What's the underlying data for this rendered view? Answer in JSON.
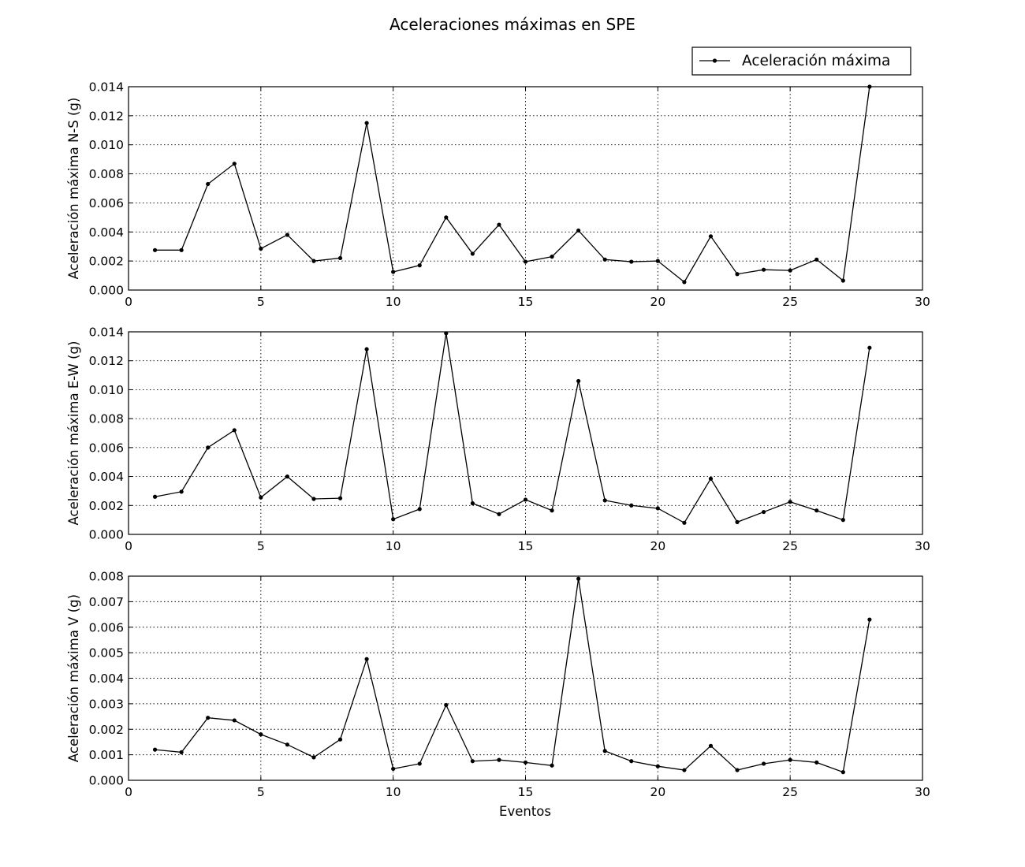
{
  "figure": {
    "title": "Aceleraciones máximas en SPE",
    "legend": {
      "label": "Aceleración máxima",
      "placement": "upper-right, above plots"
    },
    "x_axis_label": "Eventos"
  },
  "chart_data": [
    {
      "type": "line",
      "marker": "point",
      "color": "#000000",
      "grid": true,
      "ylabel": "Aceleración máxima N-S (g)",
      "xlabel": "",
      "xlim": [
        0,
        30
      ],
      "ylim": [
        0,
        0.014
      ],
      "xticks": [
        0,
        5,
        10,
        15,
        20,
        25,
        30
      ],
      "xtick_labels": [
        "0",
        "5",
        "10",
        "15",
        "20",
        "25",
        "30"
      ],
      "yticks": [
        0,
        0.002,
        0.004,
        0.006,
        0.008,
        0.01,
        0.012,
        0.014
      ],
      "ytick_labels": [
        "0.000",
        "0.002",
        "0.004",
        "0.006",
        "0.008",
        "0.010",
        "0.012",
        "0.014"
      ],
      "x": [
        1,
        2,
        3,
        4,
        5,
        6,
        7,
        8,
        9,
        10,
        11,
        12,
        13,
        14,
        15,
        16,
        17,
        18,
        19,
        20,
        21,
        22,
        23,
        24,
        25,
        26,
        27,
        28
      ],
      "series": [
        {
          "name": "Aceleración máxima",
          "values": [
            0.00275,
            0.00275,
            0.0073,
            0.0087,
            0.00285,
            0.0038,
            0.002,
            0.0022,
            0.0115,
            0.00125,
            0.0017,
            0.005,
            0.0025,
            0.0045,
            0.00195,
            0.0023,
            0.0041,
            0.0021,
            0.00195,
            0.002,
            0.00055,
            0.0037,
            0.0011,
            0.0014,
            0.00135,
            0.0021,
            0.00065,
            0.014
          ]
        }
      ]
    },
    {
      "type": "line",
      "marker": "point",
      "color": "#000000",
      "grid": true,
      "ylabel": "Aceleración máxima E-W (g)",
      "xlabel": "",
      "xlim": [
        0,
        30
      ],
      "ylim": [
        0,
        0.014
      ],
      "xticks": [
        0,
        5,
        10,
        15,
        20,
        25,
        30
      ],
      "xtick_labels": [
        "0",
        "5",
        "10",
        "15",
        "20",
        "25",
        "30"
      ],
      "yticks": [
        0,
        0.002,
        0.004,
        0.006,
        0.008,
        0.01,
        0.012,
        0.014
      ],
      "ytick_labels": [
        "0.000",
        "0.002",
        "0.004",
        "0.006",
        "0.008",
        "0.010",
        "0.012",
        "0.014"
      ],
      "x": [
        1,
        2,
        3,
        4,
        5,
        6,
        7,
        8,
        9,
        10,
        11,
        12,
        13,
        14,
        15,
        16,
        17,
        18,
        19,
        20,
        21,
        22,
        23,
        24,
        25,
        26,
        27,
        28
      ],
      "series": [
        {
          "name": "Aceleración máxima",
          "values": [
            0.0026,
            0.00295,
            0.006,
            0.0072,
            0.00255,
            0.004,
            0.00245,
            0.0025,
            0.0128,
            0.00105,
            0.00175,
            0.0139,
            0.00215,
            0.0014,
            0.0024,
            0.00165,
            0.0106,
            0.00235,
            0.002,
            0.0018,
            0.0008,
            0.00385,
            0.00085,
            0.00155,
            0.00225,
            0.00165,
            0.001,
            0.0129
          ]
        }
      ]
    },
    {
      "type": "line",
      "marker": "point",
      "color": "#000000",
      "grid": true,
      "ylabel": "Aceleración máxima V (g)",
      "xlabel": "Eventos",
      "xlim": [
        0,
        30
      ],
      "ylim": [
        0,
        0.008
      ],
      "xticks": [
        0,
        5,
        10,
        15,
        20,
        25,
        30
      ],
      "xtick_labels": [
        "0",
        "5",
        "10",
        "15",
        "20",
        "25",
        "30"
      ],
      "yticks": [
        0,
        0.001,
        0.002,
        0.003,
        0.004,
        0.005,
        0.006,
        0.007,
        0.008
      ],
      "ytick_labels": [
        "0.000",
        "0.001",
        "0.002",
        "0.003",
        "0.004",
        "0.005",
        "0.006",
        "0.007",
        "0.008"
      ],
      "x": [
        1,
        2,
        3,
        4,
        5,
        6,
        7,
        8,
        9,
        10,
        11,
        12,
        13,
        14,
        15,
        16,
        17,
        18,
        19,
        20,
        21,
        22,
        23,
        24,
        25,
        26,
        27,
        28
      ],
      "series": [
        {
          "name": "Aceleración máxima",
          "values": [
            0.0012,
            0.0011,
            0.00245,
            0.00235,
            0.0018,
            0.0014,
            0.0009,
            0.0016,
            0.00475,
            0.00045,
            0.00065,
            0.00295,
            0.00075,
            0.0008,
            0.0007,
            0.00058,
            0.0079,
            0.00115,
            0.00075,
            0.00055,
            0.0004,
            0.00135,
            0.0004,
            0.00065,
            0.0008,
            0.0007,
            0.00032,
            0.0063
          ]
        }
      ]
    }
  ]
}
